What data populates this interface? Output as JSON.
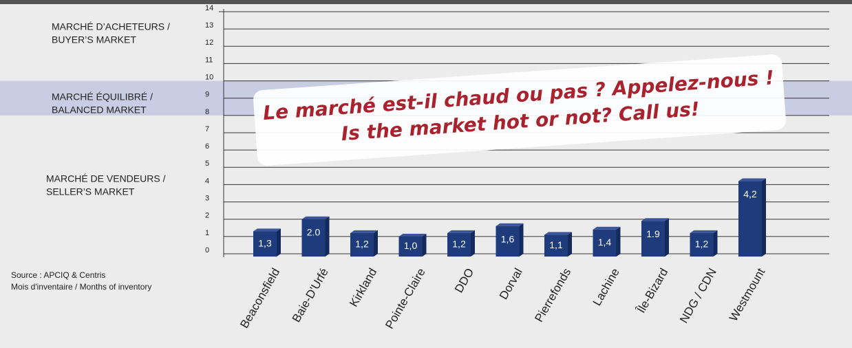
{
  "chart_data": {
    "type": "bar",
    "categories": [
      "Beaconsfield",
      "Baie-D'Urfé",
      "Kirkland",
      "Pointe-Claire",
      "DDO",
      "Dorval",
      "Pierrefonds",
      "Lachine",
      "Île-Bizard",
      "NDG / CDN",
      "Westmount"
    ],
    "values": [
      1.3,
      2.0,
      1.2,
      1.0,
      1.2,
      1.6,
      1.1,
      1.4,
      1.9,
      1.2,
      4.2
    ],
    "value_labels": [
      "1,3",
      "2.0",
      "1,2",
      "1,0",
      "1,2",
      "1,6",
      "1,1",
      "1,4",
      "1.9",
      "1,2",
      "4,2"
    ],
    "color": "#1e3c7c",
    "ylim": [
      0,
      14
    ],
    "yticks": [
      0,
      1,
      2,
      3,
      4,
      5,
      6,
      7,
      8,
      9,
      10,
      11,
      12,
      13,
      14
    ],
    "grid": true,
    "zones": [
      {
        "lines": [
          "MARCHÉ D’ACHETEURS /",
          "BUYER’S MARKET"
        ]
      },
      {
        "lines": [
          "MARCHÉ ÉQUILIBRÉ /",
          "BALANCED MARKET"
        ],
        "range": [
          8,
          10
        ],
        "color": "#c9cde3"
      },
      {
        "lines": [
          "MARCHÉ DE VENDEURS /",
          "SELLER’S MARKET"
        ]
      }
    ],
    "annotation": [
      "Le marché est-il chaud ou pas ? Appelez-nous !",
      "Is the market hot or not?  Call us!"
    ],
    "source": [
      "Source : APCIQ & Centris",
      "Mois d'inventaire / Months of inventory"
    ]
  }
}
